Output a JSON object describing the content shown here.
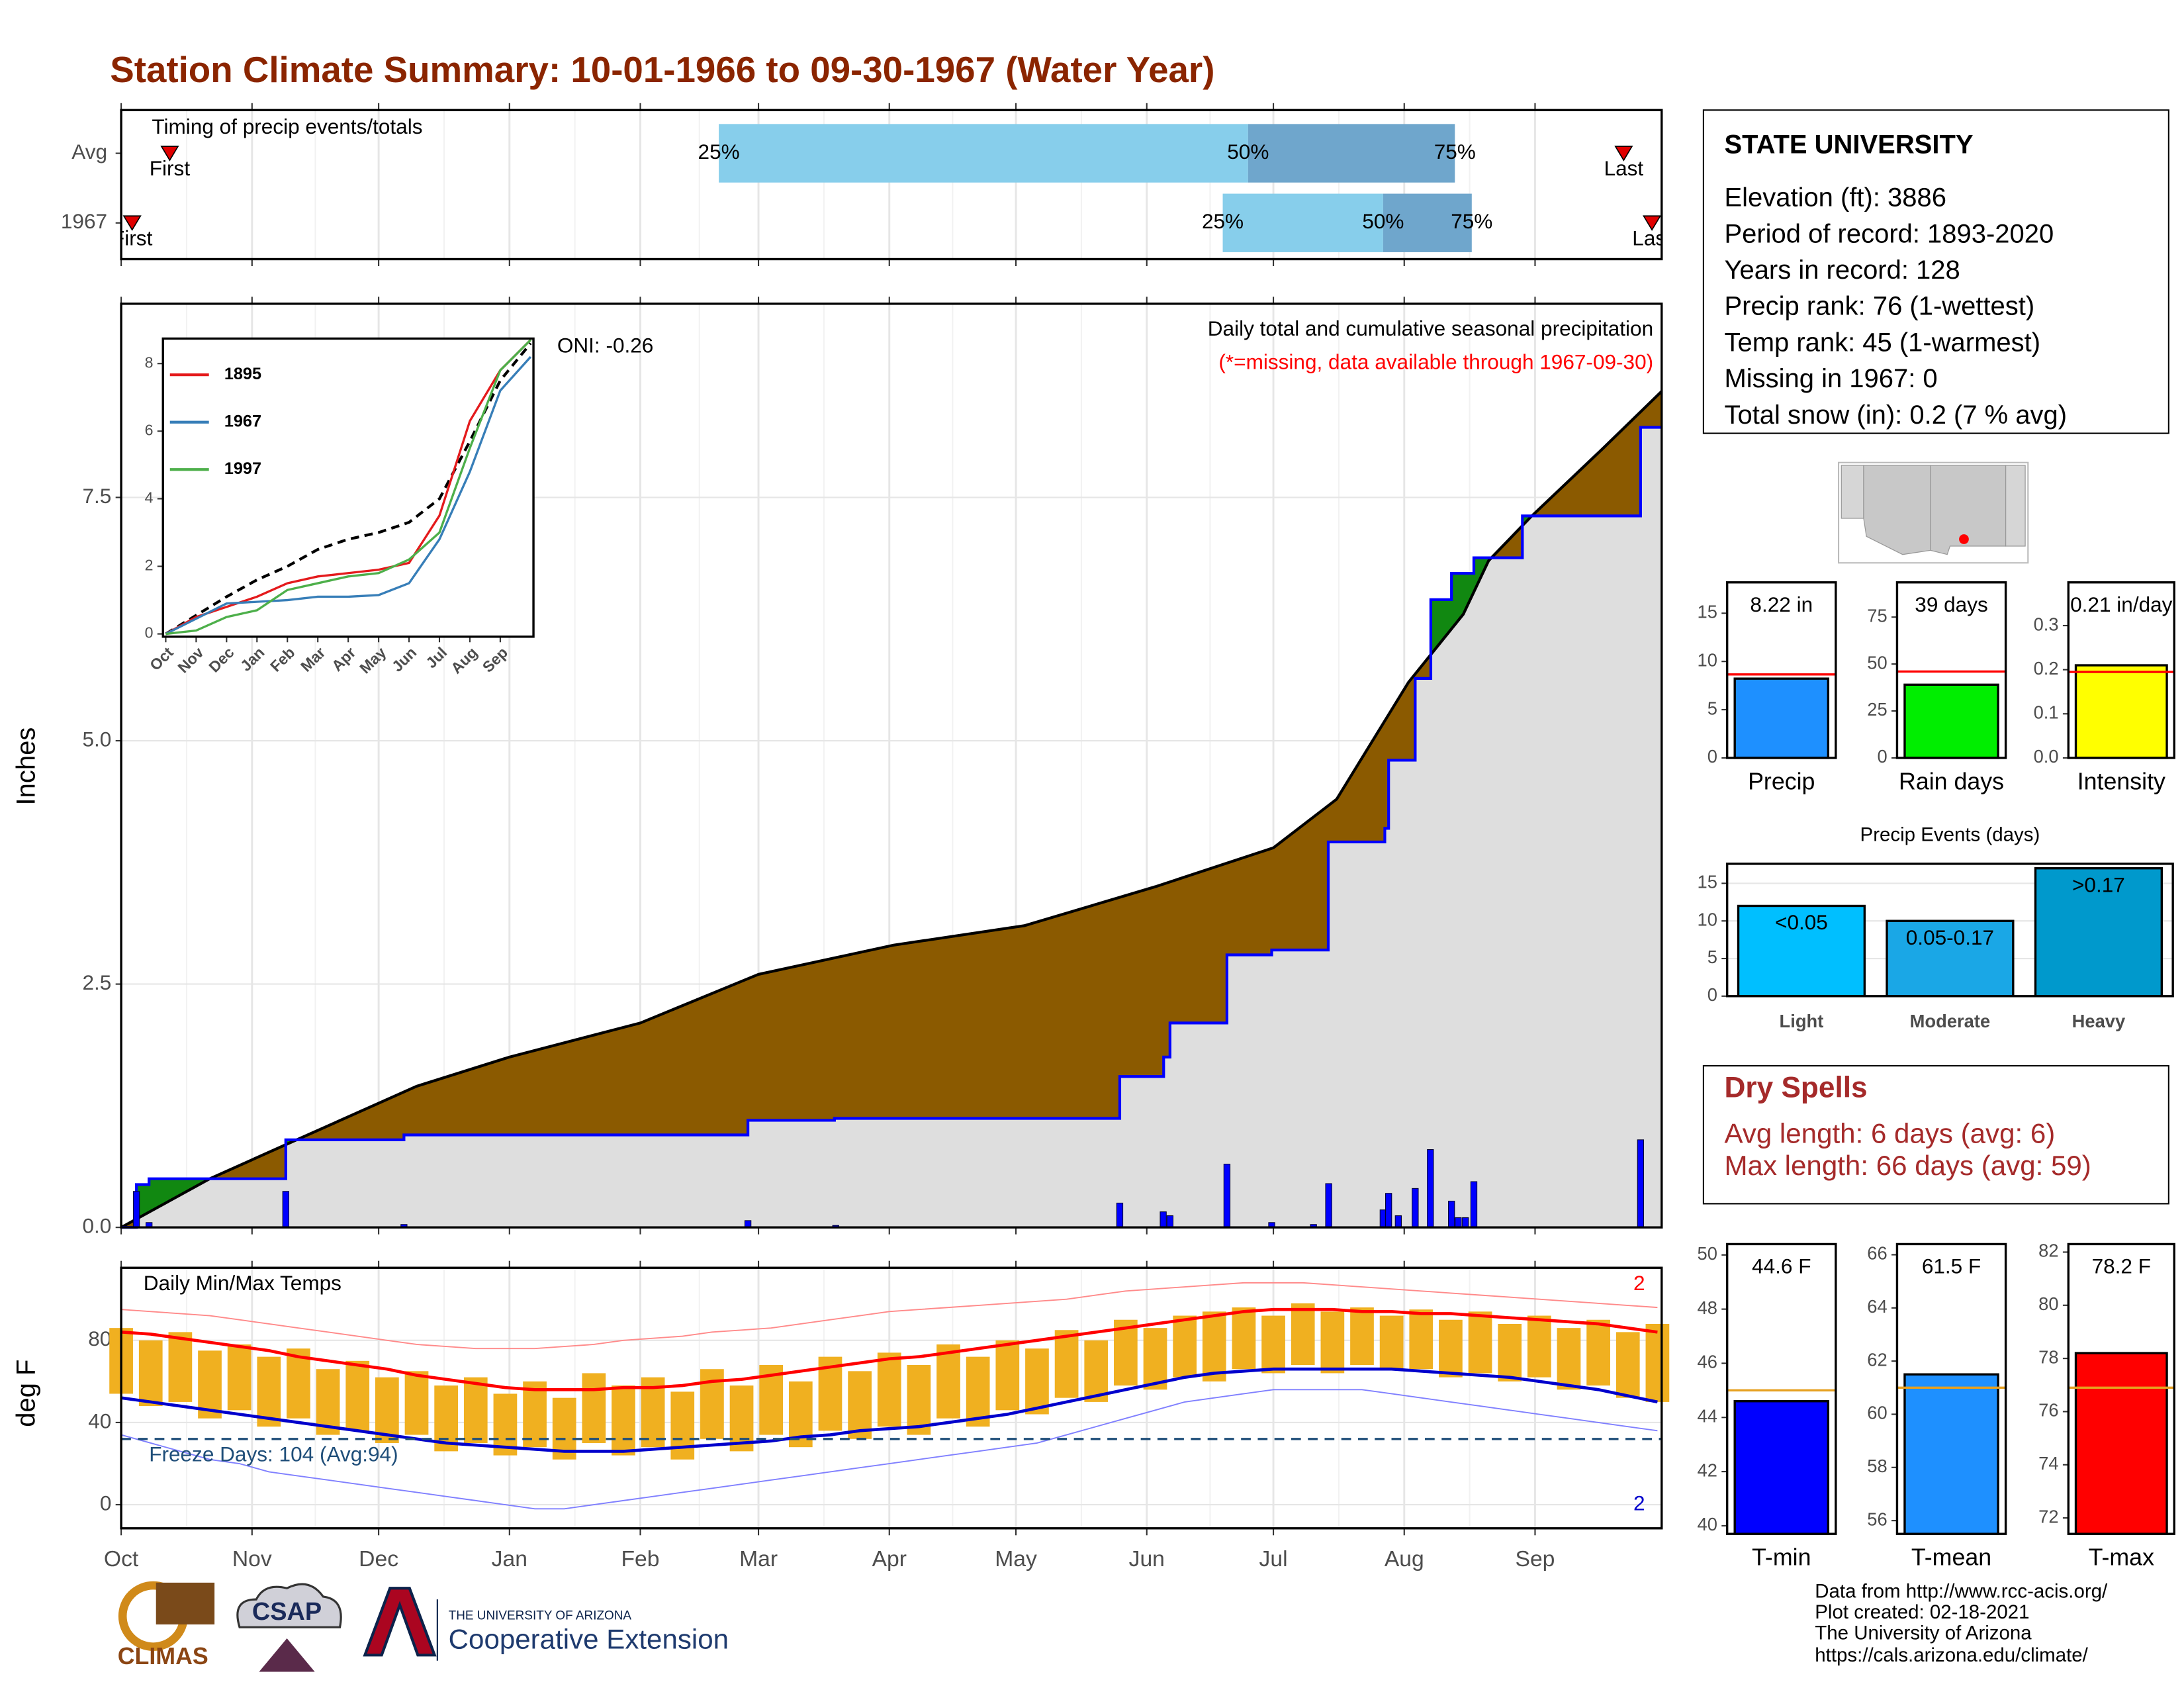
{
  "title": "Station Climate Summary: 10-01-1966 to 09-30-1967 (Water Year)",
  "chart_data": [
    {
      "type": "timing",
      "title": "Timing of precip events/totals",
      "categories": [
        "Avg",
        "1967"
      ],
      "xlim": [
        0,
        365
      ],
      "first": [
        11.5,
        2.6
      ],
      "last": [
        356,
        362.7
      ],
      "q25": [
        141.6,
        261
      ],
      "q50": [
        267,
        299
      ],
      "q75": [
        316,
        320
      ],
      "first_label": "First",
      "last_label": "Last",
      "q_labels": [
        "25%",
        "50%",
        "75%"
      ],
      "colors": [
        "#87ceeb",
        "#6fa6cc"
      ],
      "marker_color": "#e00000"
    },
    {
      "type": "cumulative",
      "ylabel": "Inches",
      "subtitle": "Daily total and cumulative seasonal precipitation",
      "note": "(*=missing, data available through 1967-09-30)",
      "oni": "ONI: -0.26",
      "xlim": [
        0,
        365
      ],
      "ylim": [
        0,
        9.49
      ],
      "yticks": [
        {
          "value": 0,
          "label": "0.0"
        },
        2.5,
        {
          "value": 5,
          "label": "5.0"
        },
        7.5
      ],
      "grid": true,
      "series": [
        {
          "x": [
            0,
            21,
            39,
            70,
            92,
            123,
            151,
            183,
            214,
            245,
            273,
            288,
            305,
            318,
            324,
            334,
            351,
            365
          ],
          "values": [
            0,
            0.5,
            0.85,
            1.45,
            1.75,
            2.1,
            2.6,
            2.9,
            3.1,
            3.5,
            3.9,
            4.4,
            5.6,
            6.3,
            6.85,
            7.3,
            8.0,
            8.59
          ],
          "color": "#000000",
          "fill": "#8b5a00"
        },
        {
          "x": [
            0,
            3.6,
            6.6,
            39,
            67,
            148.5,
            169,
            236.6,
            247,
            248.5,
            262,
            272.6,
            286,
            299.4,
            300.3,
            306.6,
            310.3,
            315.2,
            320.5,
            332,
            360,
            365
          ],
          "values": [
            0,
            0.44,
            0.5,
            0.9,
            0.95,
            1.1,
            1.12,
            1.55,
            1.75,
            2.1,
            2.8,
            2.85,
            3.96,
            4.1,
            4.8,
            5.64,
            6.45,
            6.72,
            6.88,
            7.31,
            8.22,
            8.22
          ],
          "color": "#0000ff",
          "step": true,
          "fill": "#dedede",
          "fill_above": "#118811"
        }
      ],
      "bars": {
        "x": [
          3.6,
          6.6,
          39,
          67,
          148.5,
          169.3,
          236.6,
          246.9,
          248.5,
          262,
          272.6,
          282.5,
          286.1,
          299,
          300.3,
          302.6,
          306.6,
          310.2,
          315.2,
          316.8,
          318.5,
          320.5,
          360
        ],
        "values": [
          0.37,
          0.05,
          0.37,
          0.03,
          0.07,
          0.02,
          0.25,
          0.16,
          0.12,
          0.65,
          0.05,
          0.03,
          0.45,
          0.18,
          0.35,
          0.12,
          0.4,
          0.8,
          0.27,
          0.1,
          0.1,
          0.47,
          0.9
        ],
        "color": "#0000ff"
      }
    },
    {
      "type": "line",
      "x": [
        0,
        1,
        2,
        3,
        4,
        5,
        6,
        7,
        8,
        9,
        10,
        11,
        12
      ],
      "xlim": [
        0,
        12
      ],
      "xticks": [
        {
          "value": 0,
          "label": "Oct"
        },
        {
          "value": 1,
          "label": "Nov"
        },
        {
          "value": 2,
          "label": "Dec"
        },
        {
          "value": 3,
          "label": "Jan"
        },
        {
          "value": 4,
          "label": "Feb"
        },
        {
          "value": 5,
          "label": "Mar"
        },
        {
          "value": 6,
          "label": "Apr"
        },
        {
          "value": 7,
          "label": "May"
        },
        {
          "value": 8,
          "label": "Jun"
        },
        {
          "value": 9,
          "label": "Jul"
        },
        {
          "value": 10,
          "label": "Aug"
        },
        {
          "value": 11,
          "label": "Sep"
        }
      ],
      "ylim": [
        0,
        8.74
      ],
      "yticks": [
        0,
        2,
        4,
        6,
        8
      ],
      "series": [
        {
          "values": [
            0,
            0.55,
            1.1,
            1.6,
            2.0,
            2.5,
            2.8,
            3.0,
            3.3,
            4.0,
            5.7,
            7.5,
            8.6
          ],
          "color": "#000000",
          "dash": true
        },
        {
          "name": "1895",
          "values": [
            0,
            0.5,
            0.8,
            1.1,
            1.5,
            1.7,
            1.8,
            1.9,
            2.1,
            3.5,
            6.3,
            7.8,
            8.7
          ],
          "color": "#e41a1c"
        },
        {
          "name": "1967",
          "values": [
            0,
            0.45,
            0.9,
            0.95,
            1.0,
            1.1,
            1.1,
            1.15,
            1.5,
            2.8,
            4.8,
            7.2,
            8.2
          ],
          "color": "#377eb8"
        },
        {
          "name": "1997",
          "values": [
            0,
            0.1,
            0.5,
            0.7,
            1.3,
            1.5,
            1.7,
            1.8,
            2.2,
            3.0,
            5.5,
            7.8,
            8.7
          ],
          "color": "#4daf4a"
        }
      ],
      "legend": "top-left"
    },
    {
      "type": "bar",
      "categories": [
        "Precip"
      ],
      "values": [
        8.22
      ],
      "value_labels": [
        "8.22 in"
      ],
      "color": "#1e90ff",
      "reference": 8.66,
      "reference_color": "#ff0000",
      "ylim": [
        0,
        18.2
      ],
      "yticks": [
        0,
        5,
        10,
        15
      ]
    },
    {
      "type": "bar",
      "categories": [
        "Rain days"
      ],
      "values": [
        39
      ],
      "value_labels": [
        "39 days"
      ],
      "color": "#00ee00",
      "reference": 46,
      "reference_color": "#ff0000",
      "ylim": [
        0,
        93.5
      ],
      "yticks": [
        0,
        25,
        50,
        75
      ]
    },
    {
      "type": "bar",
      "categories": [
        "Intensity"
      ],
      "values": [
        0.21
      ],
      "value_labels": [
        "0.21 in/day"
      ],
      "color": "#ffff00",
      "reference": 0.195,
      "reference_color": "#ff0000",
      "ylim": [
        0,
        0.398
      ],
      "yticks": [
        {
          "value": 0,
          "label": "0.0"
        },
        0.1,
        0.2,
        0.3
      ]
    },
    {
      "type": "bar",
      "title": "Precip Events (days)",
      "categories": [
        "Light",
        "Moderate",
        "Heavy"
      ],
      "values": [
        12,
        10,
        17
      ],
      "value_labels": [
        "<0.05",
        "0.05-0.17",
        ">0.17"
      ],
      "colors": [
        "#00bfff",
        "#1aa7e6",
        "#0099cc"
      ],
      "ylim": [
        0,
        17.6
      ],
      "yticks": [
        0,
        5,
        10,
        15
      ],
      "grid": true
    },
    {
      "type": "temperature",
      "ylabel": "deg F",
      "title": "Daily Min/Max Temps",
      "freeze_label": "Freeze Days: 104 (Avg:94)",
      "record_high_count": "2",
      "record_low_count": "2",
      "freeze_line": 32,
      "xlim": [
        0,
        365
      ],
      "ylim": [
        -11.5,
        115.3
      ],
      "yticks": [
        0,
        40,
        80
      ],
      "grid": true,
      "xticks": [
        {
          "value": 0,
          "label": "Oct"
        },
        {
          "value": 31,
          "label": "Nov"
        },
        {
          "value": 61,
          "label": "Dec"
        },
        {
          "value": 92,
          "label": "Jan"
        },
        {
          "value": 123,
          "label": "Feb"
        },
        {
          "value": 151,
          "label": "Mar"
        },
        {
          "value": 182,
          "label": "Apr"
        },
        {
          "value": 212,
          "label": "May"
        },
        {
          "value": 243,
          "label": "Jun"
        },
        {
          "value": 273,
          "label": "Jul"
        },
        {
          "value": 304,
          "label": "Aug"
        },
        {
          "value": 335,
          "label": "Sep"
        }
      ],
      "x": [
        0,
        7,
        14,
        21,
        28,
        35,
        42,
        49,
        56,
        63,
        70,
        77,
        84,
        91,
        98,
        105,
        112,
        119,
        126,
        133,
        140,
        147,
        154,
        161,
        168,
        175,
        182,
        189,
        196,
        203,
        210,
        217,
        224,
        231,
        238,
        245,
        252,
        259,
        266,
        273,
        280,
        287,
        294,
        301,
        308,
        315,
        322,
        329,
        336,
        343,
        350,
        357,
        364
      ],
      "daily": {
        "color": "#f0b020",
        "max": [
          86,
          80,
          84,
          75,
          78,
          72,
          76,
          66,
          70,
          62,
          65,
          58,
          62,
          54,
          60,
          52,
          64,
          58,
          62,
          55,
          66,
          58,
          68,
          60,
          72,
          65,
          74,
          68,
          78,
          72,
          80,
          76,
          85,
          80,
          90,
          86,
          92,
          94,
          96,
          92,
          98,
          94,
          96,
          92,
          95,
          90,
          94,
          88,
          92,
          86,
          90,
          84,
          88
        ],
        "min": [
          54,
          48,
          50,
          42,
          46,
          38,
          42,
          34,
          36,
          30,
          34,
          26,
          30,
          24,
          28,
          22,
          30,
          24,
          28,
          22,
          32,
          26,
          34,
          28,
          36,
          32,
          38,
          34,
          42,
          38,
          46,
          44,
          52,
          50,
          58,
          56,
          62,
          60,
          66,
          64,
          68,
          64,
          68,
          66,
          66,
          62,
          64,
          60,
          62,
          56,
          58,
          52,
          50
        ]
      },
      "normal": {
        "colors": [
          "#ff0000",
          "#0000cc"
        ],
        "max": [
          84,
          83,
          81,
          79,
          77,
          75,
          72,
          70,
          68,
          66,
          63,
          61,
          59,
          57,
          56,
          56,
          56,
          57,
          57,
          58,
          60,
          61,
          63,
          65,
          67,
          69,
          71,
          72,
          74,
          76,
          78,
          80,
          82,
          84,
          86,
          88,
          90,
          92,
          94,
          95,
          95,
          95,
          94,
          94,
          93,
          93,
          92,
          91,
          90,
          89,
          88,
          86,
          84
        ],
        "min": [
          52,
          50,
          48,
          46,
          44,
          42,
          40,
          38,
          36,
          34,
          32,
          30,
          29,
          28,
          27,
          26,
          26,
          26,
          27,
          28,
          29,
          30,
          31,
          33,
          34,
          36,
          37,
          38,
          40,
          42,
          44,
          47,
          50,
          53,
          56,
          59,
          62,
          64,
          65,
          66,
          66,
          66,
          66,
          66,
          65,
          64,
          63,
          62,
          60,
          58,
          56,
          53,
          50
        ]
      },
      "record": {
        "colors": [
          "#ff8a8a",
          "#8080ff"
        ],
        "max": [
          95,
          94,
          93,
          92,
          90,
          88,
          86,
          84,
          82,
          80,
          78,
          77,
          76,
          76,
          76,
          77,
          78,
          80,
          81,
          82,
          84,
          85,
          86,
          88,
          90,
          92,
          94,
          95,
          96,
          97,
          98,
          99,
          100,
          102,
          104,
          105,
          106,
          107,
          108,
          108,
          108,
          107,
          106,
          105,
          104,
          103,
          102,
          101,
          100,
          99,
          98,
          97,
          96
        ],
        "min": [
          34,
          30,
          26,
          22,
          20,
          16,
          14,
          12,
          10,
          8,
          6,
          4,
          2,
          0,
          -2,
          -2,
          0,
          2,
          4,
          6,
          8,
          10,
          12,
          14,
          16,
          18,
          20,
          22,
          24,
          26,
          28,
          30,
          34,
          38,
          42,
          46,
          50,
          52,
          54,
          56,
          56,
          56,
          56,
          54,
          52,
          50,
          48,
          46,
          44,
          42,
          40,
          38,
          36
        ]
      }
    },
    {
      "type": "bar",
      "categories": [
        "T-min"
      ],
      "values": [
        44.6
      ],
      "value_labels": [
        "44.6 F"
      ],
      "color": "#0000ff",
      "reference": 45.0,
      "reference_color": "#e6a020",
      "ylim": [
        39.7,
        50.4
      ],
      "yticks": [
        40,
        42,
        44,
        46,
        48,
        50
      ]
    },
    {
      "type": "bar",
      "categories": [
        "T-mean"
      ],
      "values": [
        61.5
      ],
      "value_labels": [
        "61.5 F"
      ],
      "color": "#1e90ff",
      "reference": 61.0,
      "reference_color": "#e6a020",
      "ylim": [
        55.5,
        66.4
      ],
      "yticks": [
        56,
        58,
        60,
        62,
        64,
        66
      ]
    },
    {
      "type": "bar",
      "categories": [
        "T-max"
      ],
      "values": [
        78.2
      ],
      "value_labels": [
        "78.2 F"
      ],
      "color": "#ff0000",
      "reference": 76.9,
      "reference_color": "#e6a020",
      "ylim": [
        71.4,
        82.3
      ],
      "yticks": [
        72,
        74,
        76,
        78,
        80,
        82
      ]
    }
  ],
  "station": {
    "name": "STATE UNIVERSITY",
    "lines": [
      "Elevation (ft): 3886",
      "Period of record: 1893-2020",
      "Years in record: 128",
      "Precip rank: 76 (1-wettest)",
      "Temp rank: 45 (1-warmest)",
      "Missing in 1967: 0",
      "Total snow (in): 0.2 (7 % avg)"
    ]
  },
  "dry_spells": {
    "title": "Dry Spells",
    "lines": [
      "Avg length: 6 days (avg: 6)",
      "Max length: 66 days (avg: 59)"
    ]
  },
  "footer": [
    "Data from http://www.rcc-acis.org/",
    "Plot created: 02-18-2021",
    "The University of Arizona",
    "https://cals.arizona.edu/climate/"
  ],
  "logos": {
    "climas": "CLIMAS",
    "csap": "CSAP",
    "ua": "THE UNIVERSITY OF ARIZONA",
    "extension": "Cooperative Extension"
  }
}
